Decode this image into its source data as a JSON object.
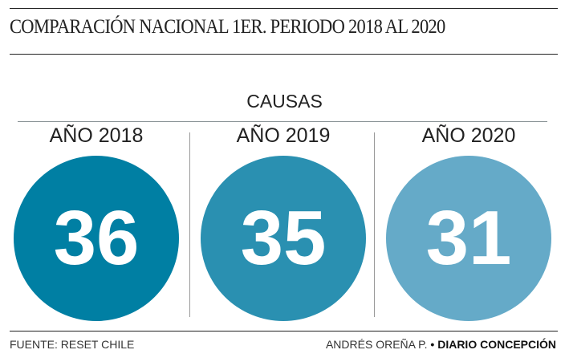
{
  "title": "COMPARACIÓN NACIONAL 1ER. PERIODO 2018 AL 2020",
  "chart_data": {
    "type": "bar",
    "title": "CAUSAS",
    "categories": [
      "AÑO 2018",
      "AÑO 2019",
      "AÑO 2020"
    ],
    "values": [
      36,
      35,
      31
    ],
    "value_labels": [
      "36",
      "35",
      "31"
    ],
    "colors": [
      "#007fa3",
      "#2a90b1",
      "#65aac8"
    ]
  },
  "footer": {
    "source": "FUENTE: RESET CHILE",
    "author": "ANDRÉS OREÑA P.",
    "separator": "•",
    "publication": "DIARIO CONCEPCIÓN"
  }
}
